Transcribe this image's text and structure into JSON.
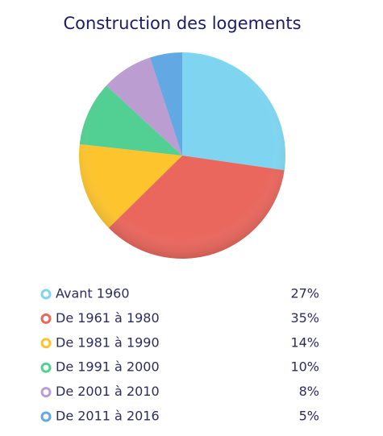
{
  "chart_data": {
    "type": "pie",
    "title": "Construction des logements",
    "categories": [
      "Avant 1960",
      "De 1961 à 1980",
      "De 1981 à 1990",
      "De 1991 à 2000",
      "De 2001 à 2010",
      "De 2011 à 2016"
    ],
    "values": [
      27,
      35,
      14,
      10,
      8,
      5
    ],
    "value_labels": [
      "27%",
      "35%",
      "14%",
      "10%",
      "8%",
      "5%"
    ],
    "colors": [
      "#7fd5f0",
      "#e9675d",
      "#fdc42e",
      "#52cf92",
      "#bb9dd2",
      "#62a8e2"
    ]
  }
}
